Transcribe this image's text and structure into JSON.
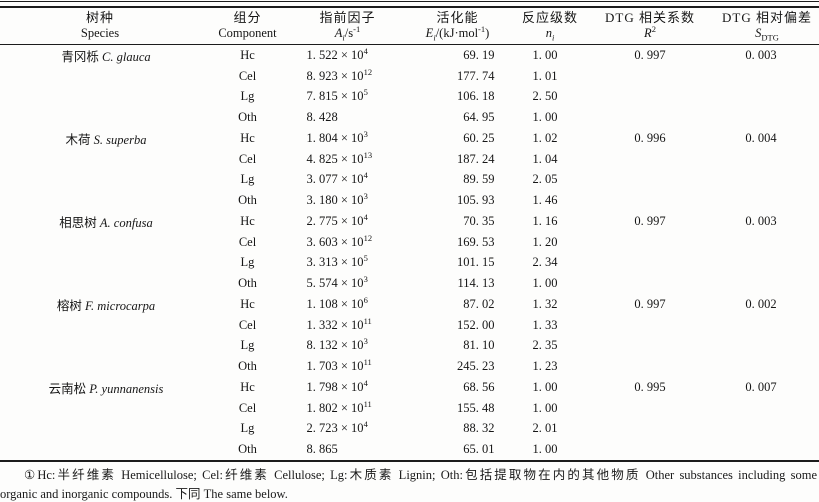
{
  "table": {
    "columns": [
      {
        "zh": "树种",
        "en": "Species"
      },
      {
        "zh": "组分",
        "en": "Component"
      },
      {
        "zh": "指前因子",
        "en": "*A~i~*/s^-1^"
      },
      {
        "zh": "活化能",
        "en": "*E~i~*/(kJ·mol^-1^)"
      },
      {
        "zh": "反应级数",
        "en": "*n~i~*"
      },
      {
        "zh": "DTG 相关系数",
        "en": "*R*^2^"
      },
      {
        "zh": "DTG 相对偏差",
        "en": "*S*~DTG~"
      }
    ],
    "groups": [
      {
        "species": "青冈栎 *C. glauca*",
        "rows": [
          {
            "component": "Hc",
            "a": "1. 522 × 10^4^",
            "e": "69. 19",
            "n": "1. 00",
            "r2": "0. 997",
            "s": "0. 003"
          },
          {
            "component": "Cel",
            "a": "8. 923 × 10^12^",
            "e": "177. 74",
            "n": "1. 01",
            "r2": "",
            "s": ""
          },
          {
            "component": "Lg",
            "a": "7. 815 × 10^5^",
            "e": "106. 18",
            "n": "2. 50",
            "r2": "",
            "s": ""
          },
          {
            "component": "Oth",
            "a": "8. 428",
            "e": "64. 95",
            "n": "1. 00",
            "r2": "",
            "s": ""
          }
        ]
      },
      {
        "species": "木荷 *S. superba*",
        "rows": [
          {
            "component": "Hc",
            "a": "1. 804 × 10^3^",
            "e": "60. 25",
            "n": "1. 02",
            "r2": "0. 996",
            "s": "0. 004"
          },
          {
            "component": "Cel",
            "a": "4. 825 × 10^13^",
            "e": "187. 24",
            "n": "1. 04",
            "r2": "",
            "s": ""
          },
          {
            "component": "Lg",
            "a": "3. 077 × 10^4^",
            "e": "89. 59",
            "n": "2. 05",
            "r2": "",
            "s": ""
          },
          {
            "component": "Oth",
            "a": "3. 180 × 10^3^",
            "e": "105. 93",
            "n": "1. 46",
            "r2": "",
            "s": ""
          }
        ]
      },
      {
        "species": "相思树 *A. confusa*",
        "rows": [
          {
            "component": "Hc",
            "a": "2. 775 × 10^4^",
            "e": "70. 35",
            "n": "1. 16",
            "r2": "0. 997",
            "s": "0. 003"
          },
          {
            "component": "Cel",
            "a": "3. 603 × 10^12^",
            "e": "169. 53",
            "n": "1. 20",
            "r2": "",
            "s": ""
          },
          {
            "component": "Lg",
            "a": "3. 313 × 10^5^",
            "e": "101. 15",
            "n": "2. 34",
            "r2": "",
            "s": ""
          },
          {
            "component": "Oth",
            "a": "5. 574 × 10^3^",
            "e": "114. 13",
            "n": "1. 00",
            "r2": "",
            "s": ""
          }
        ]
      },
      {
        "species": "榕树 *F. microcarpa*",
        "rows": [
          {
            "component": "Hc",
            "a": "1. 108 × 10^6^",
            "e": "87. 02",
            "n": "1. 32",
            "r2": "0. 997",
            "s": "0. 002"
          },
          {
            "component": "Cel",
            "a": "1. 332 × 10^11^",
            "e": "152. 00",
            "n": "1. 33",
            "r2": "",
            "s": ""
          },
          {
            "component": "Lg",
            "a": "8. 132 × 10^3^",
            "e": "81. 10",
            "n": "2. 35",
            "r2": "",
            "s": ""
          },
          {
            "component": "Oth",
            "a": "1. 703 × 10^11^",
            "e": "245. 23",
            "n": "1. 23",
            "r2": "",
            "s": ""
          }
        ]
      },
      {
        "species": "云南松 *P. yunnanensis*",
        "rows": [
          {
            "component": "Hc",
            "a": "1. 798 × 10^4^",
            "e": "68. 56",
            "n": "1. 00",
            "r2": "0. 995",
            "s": "0. 007"
          },
          {
            "component": "Cel",
            "a": "1. 802 × 10^11^",
            "e": "155. 48",
            "n": "1. 00",
            "r2": "",
            "s": ""
          },
          {
            "component": "Lg",
            "a": "2. 723 × 10^4^",
            "e": "88. 32",
            "n": "2. 01",
            "r2": "",
            "s": ""
          },
          {
            "component": "Oth",
            "a": "8. 865",
            "e": "65. 01",
            "n": "1. 00",
            "r2": "",
            "s": ""
          }
        ]
      }
    ]
  },
  "footnote": {
    "line1": "①Hc:半纤维素 Hemicellulose; Cel:纤维素 Cellulose; Lg:木质素 Lignin; Oth:包括提取物在内的其他物质 Other substances including some",
    "line2": "organic and inorganic compounds. 下同 The same below."
  }
}
